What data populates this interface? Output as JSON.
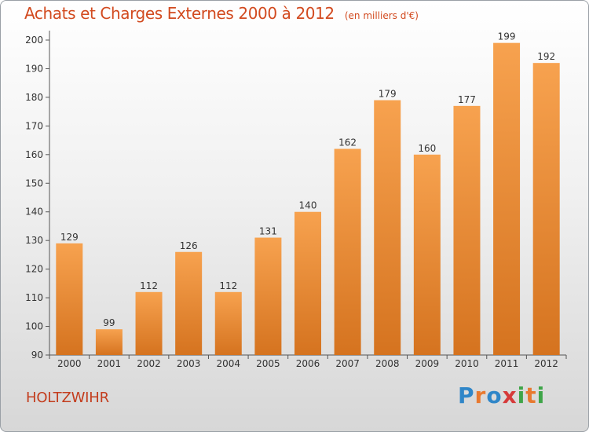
{
  "header": {
    "title": "Achats et Charges Externes 2000 à 2012",
    "unit": "(en milliers d'€)"
  },
  "footer": {
    "city": "HOLTZWIHR",
    "logo": "Proxiti"
  },
  "colors": {
    "title": "#d24a1f",
    "bar_light": "#f7a24f",
    "bar_dark": "#d5731f",
    "axis": "#555555"
  },
  "chart_data": {
    "type": "bar",
    "title": "Achats et Charges Externes 2000 à 2012",
    "subtitle": "(en milliers d'€)",
    "xlabel": "",
    "ylabel": "",
    "categories": [
      "2000",
      "2001",
      "2002",
      "2003",
      "2004",
      "2005",
      "2006",
      "2007",
      "2008",
      "2009",
      "2010",
      "2011",
      "2012"
    ],
    "values": [
      129,
      99,
      112,
      126,
      112,
      131,
      140,
      162,
      179,
      160,
      177,
      199,
      192
    ],
    "ylim": [
      90,
      200
    ],
    "yticks": [
      90,
      100,
      110,
      120,
      130,
      140,
      150,
      160,
      170,
      180,
      190,
      200
    ],
    "grid": false,
    "data_labels": true
  }
}
